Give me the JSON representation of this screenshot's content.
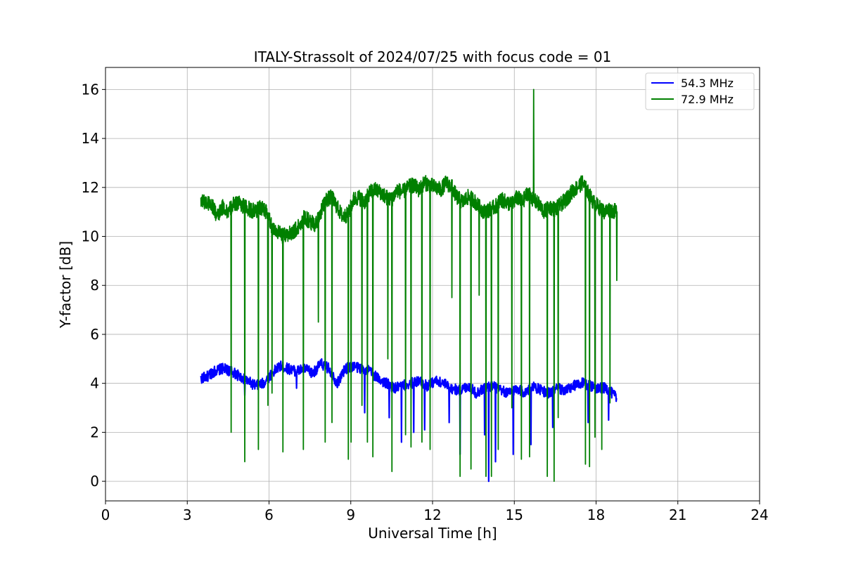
{
  "chart_data": {
    "type": "line",
    "title": "ITALY-Strassolt of 2024/07/25 with focus code = 01",
    "xlabel": "Universal Time [h]",
    "ylabel": "Y-factor [dB]",
    "xlim": [
      0,
      24
    ],
    "ylim": [
      -0.8,
      16.9
    ],
    "xticks": [
      0,
      3,
      6,
      9,
      12,
      15,
      18,
      21,
      24
    ],
    "yticks": [
      0,
      2,
      4,
      6,
      8,
      10,
      12,
      14,
      16
    ],
    "xtick_labels": [
      "0",
      "3",
      "6",
      "9",
      "12",
      "15",
      "18",
      "21",
      "24"
    ],
    "ytick_labels": [
      "0",
      "2",
      "4",
      "6",
      "8",
      "10",
      "12",
      "14",
      "16"
    ],
    "grid": true,
    "legend_position": "top-right",
    "series": [
      {
        "name": "54.3 MHz",
        "color": "#0000ff",
        "x": [
          3.5,
          3.8,
          4.0,
          4.3,
          4.6,
          4.9,
          5.2,
          5.5,
          5.8,
          6.1,
          6.4,
          6.7,
          7.0,
          7.3,
          7.6,
          7.9,
          8.2,
          8.5,
          8.8,
          9.1,
          9.4,
          9.7,
          10.0,
          10.3,
          10.6,
          10.9,
          11.2,
          11.5,
          11.8,
          12.1,
          12.4,
          12.7,
          13.0,
          13.3,
          13.6,
          13.9,
          14.2,
          14.5,
          14.8,
          15.1,
          15.4,
          15.7,
          16.0,
          16.3,
          16.6,
          16.9,
          17.2,
          17.5,
          17.8,
          18.1,
          18.4,
          18.75
        ],
        "y": [
          4.2,
          4.3,
          4.5,
          4.6,
          4.5,
          4.3,
          4.1,
          3.9,
          4.0,
          4.4,
          4.7,
          4.6,
          4.5,
          4.6,
          4.4,
          4.8,
          4.6,
          4.0,
          4.6,
          4.7,
          4.6,
          4.5,
          4.2,
          4.0,
          3.8,
          3.9,
          4.0,
          4.1,
          3.9,
          4.1,
          4.0,
          3.8,
          3.7,
          3.9,
          3.6,
          3.8,
          3.9,
          3.7,
          3.6,
          3.8,
          3.6,
          3.9,
          3.7,
          3.6,
          3.8,
          3.7,
          3.9,
          4.0,
          3.9,
          3.8,
          3.8,
          3.4
        ],
        "dips": [
          [
            5.1,
            3.5
          ],
          [
            7.0,
            3.8
          ],
          [
            9.5,
            2.8
          ],
          [
            10.4,
            2.6
          ],
          [
            10.85,
            1.6
          ],
          [
            11.3,
            2.0
          ],
          [
            11.7,
            2.1
          ],
          [
            12.6,
            2.4
          ],
          [
            13.0,
            1.1
          ],
          [
            13.9,
            1.9
          ],
          [
            14.05,
            0.0
          ],
          [
            14.3,
            0.8
          ],
          [
            14.95,
            1.1
          ],
          [
            15.6,
            1.5
          ],
          [
            16.4,
            2.2
          ],
          [
            17.7,
            2.4
          ],
          [
            18.45,
            2.5
          ]
        ]
      },
      {
        "name": "72.9 MHz",
        "color": "#008000",
        "x": [
          3.5,
          3.7,
          3.9,
          4.1,
          4.3,
          4.5,
          4.7,
          4.9,
          5.1,
          5.3,
          5.5,
          5.7,
          5.9,
          6.1,
          6.3,
          6.5,
          6.7,
          6.9,
          7.1,
          7.3,
          7.5,
          7.7,
          7.9,
          8.1,
          8.3,
          8.5,
          8.7,
          8.9,
          9.1,
          9.3,
          9.5,
          9.7,
          9.9,
          10.1,
          10.3,
          10.5,
          10.7,
          10.9,
          11.1,
          11.3,
          11.5,
          11.7,
          11.9,
          12.1,
          12.3,
          12.5,
          12.7,
          12.9,
          13.1,
          13.3,
          13.5,
          13.7,
          13.9,
          14.1,
          14.3,
          14.5,
          14.7,
          14.9,
          15.1,
          15.3,
          15.5,
          15.7,
          15.9,
          16.1,
          16.3,
          16.5,
          16.7,
          16.9,
          17.1,
          17.3,
          17.5,
          17.7,
          17.9,
          18.1,
          18.3,
          18.5,
          18.75
        ],
        "y": [
          11.5,
          11.4,
          11.3,
          10.8,
          11.2,
          11.0,
          11.3,
          11.4,
          11.2,
          11.1,
          11.0,
          11.2,
          11.0,
          10.4,
          10.2,
          10.0,
          10.1,
          10.2,
          10.4,
          10.8,
          10.6,
          10.5,
          11.0,
          11.5,
          11.6,
          11.2,
          10.8,
          10.9,
          11.5,
          11.6,
          11.4,
          11.8,
          11.9,
          11.8,
          11.6,
          11.5,
          11.9,
          11.8,
          12.0,
          12.1,
          11.9,
          12.2,
          12.1,
          12.0,
          11.9,
          12.2,
          12.0,
          11.6,
          11.4,
          11.6,
          11.5,
          11.2,
          11.0,
          11.1,
          11.2,
          11.5,
          11.4,
          11.3,
          11.6,
          11.4,
          11.8,
          11.5,
          11.3,
          11.0,
          11.2,
          11.1,
          11.3,
          11.5,
          11.8,
          12.0,
          12.2,
          11.8,
          11.4,
          11.2,
          11.0,
          11.1,
          11.0
        ],
        "dips": [
          [
            4.6,
            2.0
          ],
          [
            5.1,
            0.8
          ],
          [
            5.6,
            1.3
          ],
          [
            5.95,
            3.1
          ],
          [
            6.1,
            3.6
          ],
          [
            6.5,
            1.2
          ],
          [
            7.25,
            1.3
          ],
          [
            7.8,
            6.5
          ],
          [
            8.05,
            1.6
          ],
          [
            8.3,
            2.4
          ],
          [
            8.9,
            0.9
          ],
          [
            9.0,
            1.6
          ],
          [
            9.4,
            3.1
          ],
          [
            9.6,
            1.6
          ],
          [
            9.8,
            1.0
          ],
          [
            10.35,
            5.0
          ],
          [
            10.5,
            0.4
          ],
          [
            11.0,
            1.9
          ],
          [
            11.2,
            1.4
          ],
          [
            11.6,
            1.6
          ],
          [
            11.9,
            1.3
          ],
          [
            12.7,
            7.5
          ],
          [
            13.0,
            0.2
          ],
          [
            13.4,
            0.5
          ],
          [
            13.7,
            7.6
          ],
          [
            13.95,
            0.2
          ],
          [
            14.15,
            0.2
          ],
          [
            14.4,
            1.3
          ],
          [
            14.9,
            3.0
          ],
          [
            15.25,
            0.9
          ],
          [
            15.55,
            1.0
          ],
          [
            15.7,
            16.0
          ],
          [
            16.2,
            0.2
          ],
          [
            16.45,
            0.0
          ],
          [
            16.6,
            2.6
          ],
          [
            17.6,
            0.7
          ],
          [
            17.75,
            0.6
          ],
          [
            17.95,
            1.8
          ],
          [
            18.2,
            1.3
          ],
          [
            18.5,
            3.2
          ],
          [
            18.75,
            8.2
          ]
        ]
      }
    ]
  }
}
